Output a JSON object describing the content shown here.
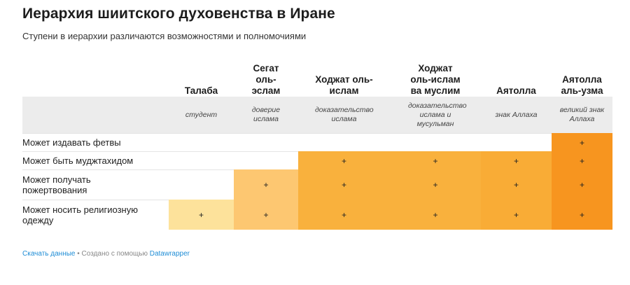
{
  "title": "Иерархия шиитского духовенства в Иране",
  "subtitle": "Ступени в иерархии различаются возможностями и полномочиями",
  "chart_data": {
    "type": "table",
    "columns": [
      {
        "name": "Талаба",
        "meaning": "студент",
        "color": "#fde29b"
      },
      {
        "name": "Сегат оль-эслам",
        "meaning": "доверие ислама",
        "color": "#fdc771"
      },
      {
        "name": "Ходжат оль-ислам",
        "meaning": "доказательство ислама",
        "color": "#f9b13d"
      },
      {
        "name": "Ходжат оль-ислам ва муслим",
        "meaning": "доказательство ислама и мусульман",
        "color": "#f9b13d"
      },
      {
        "name": "Аятолла",
        "meaning": "знак Аллаха",
        "color": "#f9ac36"
      },
      {
        "name": "Аятолла аль-узма",
        "meaning": "великий знак Аллаха",
        "color": "#f7951f"
      }
    ],
    "rows": [
      {
        "label": "Может издавать фетвы",
        "values": [
          "",
          "",
          "",
          "",
          "",
          "+"
        ]
      },
      {
        "label": "Может быть муджтахидом",
        "values": [
          "",
          "",
          "+",
          "+",
          "+",
          "+"
        ]
      },
      {
        "label": "Может получать пожертвования",
        "values": [
          "",
          "+",
          "+",
          "+",
          "+",
          "+"
        ]
      },
      {
        "label": "Может носить религиозную одежду",
        "values": [
          "+",
          "+",
          "+",
          "+",
          "+",
          "+"
        ]
      }
    ]
  },
  "footer": {
    "download_label": "Скачать данные",
    "separator": " • ",
    "created_text": "Создано с помощью ",
    "tool_label": "Datawrapper"
  }
}
